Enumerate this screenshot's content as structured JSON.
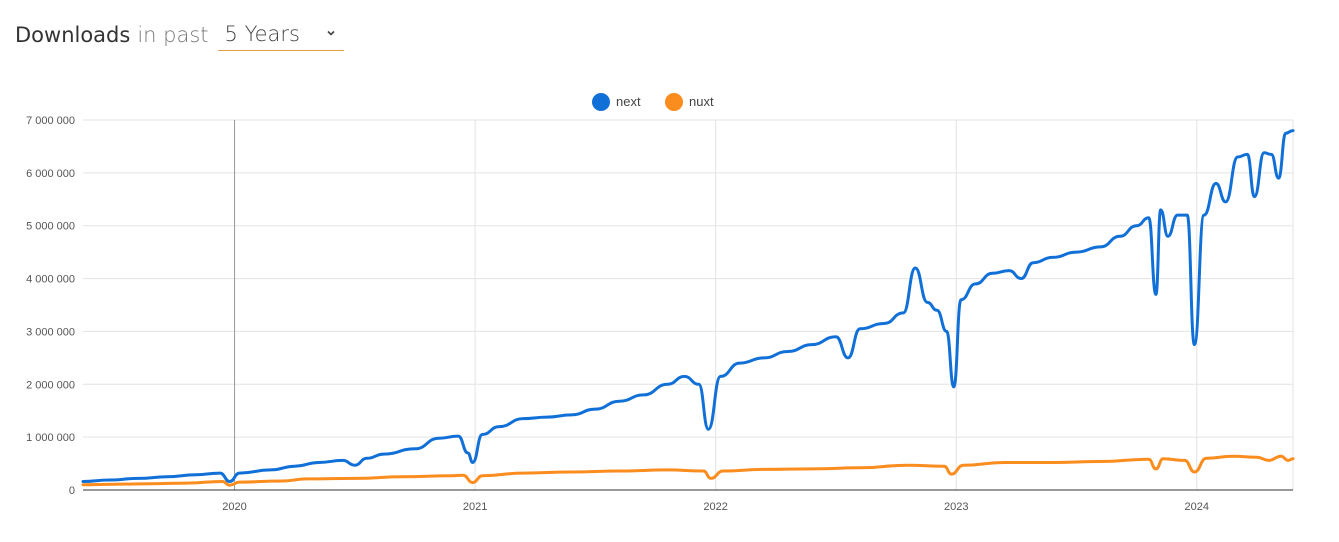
{
  "header": {
    "title": "Downloads",
    "connector": "in past",
    "range_selected": "5 Years"
  },
  "colors": {
    "next": "#1170d8",
    "nuxt": "#fb8c1e",
    "grid": "#e3e3e3",
    "axis_text": "#555555"
  },
  "chart_data": {
    "type": "line",
    "title": "",
    "xlabel": "",
    "ylabel": "",
    "ylim": [
      0,
      7000000
    ],
    "yticks": [
      0,
      1000000,
      2000000,
      3000000,
      4000000,
      5000000,
      6000000,
      7000000
    ],
    "ytick_labels": [
      "0",
      "1 000 000",
      "2 000 000",
      "3 000 000",
      "4 000 000",
      "5 000 000",
      "6 000 000",
      "7 000 000"
    ],
    "xlim": [
      2019.37,
      2024.4
    ],
    "xticks": [
      2020,
      2021,
      2022,
      2023,
      2024
    ],
    "xtick_labels": [
      "2020",
      "2021",
      "2022",
      "2023",
      "2024"
    ],
    "grid": true,
    "legend_position": "top-center",
    "series": [
      {
        "name": "next",
        "points": [
          [
            2019.37,
            160000
          ],
          [
            2019.48,
            190000
          ],
          [
            2019.6,
            220000
          ],
          [
            2019.72,
            250000
          ],
          [
            2019.84,
            290000
          ],
          [
            2019.94,
            320000
          ],
          [
            2019.98,
            160000
          ],
          [
            2020.02,
            320000
          ],
          [
            2020.15,
            380000
          ],
          [
            2020.25,
            450000
          ],
          [
            2020.35,
            520000
          ],
          [
            2020.45,
            560000
          ],
          [
            2020.5,
            470000
          ],
          [
            2020.55,
            600000
          ],
          [
            2020.62,
            680000
          ],
          [
            2020.75,
            780000
          ],
          [
            2020.85,
            980000
          ],
          [
            2020.93,
            1020000
          ],
          [
            2020.97,
            700000
          ],
          [
            2020.99,
            520000
          ],
          [
            2021.03,
            1050000
          ],
          [
            2021.1,
            1200000
          ],
          [
            2021.2,
            1350000
          ],
          [
            2021.3,
            1380000
          ],
          [
            2021.4,
            1420000
          ],
          [
            2021.5,
            1530000
          ],
          [
            2021.6,
            1680000
          ],
          [
            2021.7,
            1800000
          ],
          [
            2021.8,
            2000000
          ],
          [
            2021.87,
            2150000
          ],
          [
            2021.93,
            2000000
          ],
          [
            2021.97,
            1150000
          ],
          [
            2022.02,
            2150000
          ],
          [
            2022.1,
            2400000
          ],
          [
            2022.2,
            2500000
          ],
          [
            2022.3,
            2620000
          ],
          [
            2022.4,
            2750000
          ],
          [
            2022.5,
            2900000
          ],
          [
            2022.55,
            2500000
          ],
          [
            2022.6,
            3050000
          ],
          [
            2022.7,
            3150000
          ],
          [
            2022.78,
            3350000
          ],
          [
            2022.83,
            4200000
          ],
          [
            2022.88,
            3550000
          ],
          [
            2022.92,
            3400000
          ],
          [
            2022.96,
            3000000
          ],
          [
            2022.99,
            1950000
          ],
          [
            2023.02,
            3600000
          ],
          [
            2023.08,
            3900000
          ],
          [
            2023.15,
            4100000
          ],
          [
            2023.22,
            4150000
          ],
          [
            2023.27,
            4000000
          ],
          [
            2023.32,
            4300000
          ],
          [
            2023.4,
            4400000
          ],
          [
            2023.5,
            4500000
          ],
          [
            2023.6,
            4600000
          ],
          [
            2023.68,
            4800000
          ],
          [
            2023.75,
            5000000
          ],
          [
            2023.8,
            5150000
          ],
          [
            2023.83,
            3700000
          ],
          [
            2023.85,
            5300000
          ],
          [
            2023.88,
            4800000
          ],
          [
            2023.92,
            5200000
          ],
          [
            2023.96,
            5200000
          ],
          [
            2023.99,
            2750000
          ],
          [
            2024.03,
            5200000
          ],
          [
            2024.08,
            5800000
          ],
          [
            2024.12,
            5450000
          ],
          [
            2024.17,
            6300000
          ],
          [
            2024.21,
            6350000
          ],
          [
            2024.24,
            5550000
          ],
          [
            2024.28,
            6380000
          ],
          [
            2024.31,
            6350000
          ],
          [
            2024.34,
            5900000
          ],
          [
            2024.37,
            6750000
          ],
          [
            2024.4,
            6800000
          ]
        ]
      },
      {
        "name": "nuxt",
        "points": [
          [
            2019.37,
            100000
          ],
          [
            2019.5,
            110000
          ],
          [
            2019.65,
            120000
          ],
          [
            2019.8,
            130000
          ],
          [
            2019.95,
            160000
          ],
          [
            2019.98,
            90000
          ],
          [
            2020.02,
            150000
          ],
          [
            2020.2,
            170000
          ],
          [
            2020.3,
            210000
          ],
          [
            2020.5,
            220000
          ],
          [
            2020.7,
            250000
          ],
          [
            2020.9,
            270000
          ],
          [
            2020.95,
            280000
          ],
          [
            2020.99,
            140000
          ],
          [
            2021.03,
            270000
          ],
          [
            2021.2,
            320000
          ],
          [
            2021.4,
            340000
          ],
          [
            2021.6,
            360000
          ],
          [
            2021.8,
            380000
          ],
          [
            2021.95,
            360000
          ],
          [
            2021.98,
            220000
          ],
          [
            2022.03,
            360000
          ],
          [
            2022.2,
            390000
          ],
          [
            2022.4,
            400000
          ],
          [
            2022.6,
            420000
          ],
          [
            2022.8,
            470000
          ],
          [
            2022.95,
            450000
          ],
          [
            2022.98,
            300000
          ],
          [
            2023.03,
            470000
          ],
          [
            2023.2,
            520000
          ],
          [
            2023.4,
            520000
          ],
          [
            2023.6,
            540000
          ],
          [
            2023.8,
            580000
          ],
          [
            2023.83,
            400000
          ],
          [
            2023.86,
            590000
          ],
          [
            2023.95,
            560000
          ],
          [
            2023.99,
            340000
          ],
          [
            2024.04,
            600000
          ],
          [
            2024.15,
            640000
          ],
          [
            2024.25,
            620000
          ],
          [
            2024.3,
            560000
          ],
          [
            2024.35,
            640000
          ],
          [
            2024.38,
            560000
          ],
          [
            2024.4,
            590000
          ]
        ]
      }
    ]
  }
}
